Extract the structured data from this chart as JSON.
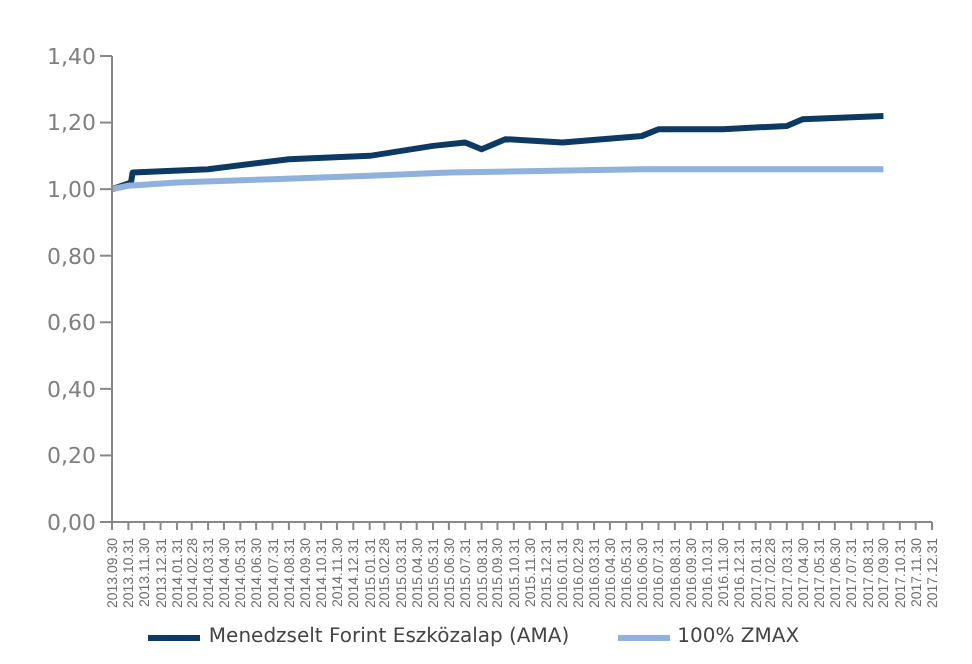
{
  "chart_data": {
    "type": "line",
    "xlim": [
      "2013-09-30",
      "2017-12-31"
    ],
    "xticks": [
      {
        "value": "2013-09-30",
        "label": "2013.09.30"
      },
      {
        "value": "2013-10-31",
        "label": "2013.10.31"
      },
      {
        "value": "2013-11-30",
        "label": "2013.11.30"
      },
      {
        "value": "2013-12-31",
        "label": "2013.12.31"
      },
      {
        "value": "2014-01-31",
        "label": "2014.01.31"
      },
      {
        "value": "2014-02-28",
        "label": "2014.02.28"
      },
      {
        "value": "2014-03-31",
        "label": "2014.03.31"
      },
      {
        "value": "2014-04-30",
        "label": "2014.04.30"
      },
      {
        "value": "2014-05-31",
        "label": "2014.05.31"
      },
      {
        "value": "2014-06-30",
        "label": "2014.06.30"
      },
      {
        "value": "2014-07-31",
        "label": "2014.07.31"
      },
      {
        "value": "2014-08-31",
        "label": "2014.08.31"
      },
      {
        "value": "2014-09-30",
        "label": "2014.09.30"
      },
      {
        "value": "2014-10-31",
        "label": "2014.10.31"
      },
      {
        "value": "2014-11-30",
        "label": "2014.11.30"
      },
      {
        "value": "2014-12-31",
        "label": "2014.12.31"
      },
      {
        "value": "2015-01-31",
        "label": "2015.01.31"
      },
      {
        "value": "2015-02-28",
        "label": "2015.02.28"
      },
      {
        "value": "2015-03-31",
        "label": "2015.03.31"
      },
      {
        "value": "2015-04-30",
        "label": "2015.04.30"
      },
      {
        "value": "2015-05-31",
        "label": "2015.05.31"
      },
      {
        "value": "2015-06-30",
        "label": "2015.06.30"
      },
      {
        "value": "2015-07-31",
        "label": "2015.07.31"
      },
      {
        "value": "2015-08-31",
        "label": "2015.08.31"
      },
      {
        "value": "2015-09-30",
        "label": "2015.09.30"
      },
      {
        "value": "2015-10-31",
        "label": "2015.10.31"
      },
      {
        "value": "2015-11-30",
        "label": "2015.11.30"
      },
      {
        "value": "2015-12-31",
        "label": "2015.12.31"
      },
      {
        "value": "2016-01-31",
        "label": "2016.01.31"
      },
      {
        "value": "2016-02-29",
        "label": "2016.02.29"
      },
      {
        "value": "2016-03-31",
        "label": "2016.03.31"
      },
      {
        "value": "2016-04-30",
        "label": "2016.04.30"
      },
      {
        "value": "2016-05-31",
        "label": "2016.05.31"
      },
      {
        "value": "2016-06-30",
        "label": "2016.06.30"
      },
      {
        "value": "2016-07-31",
        "label": "2016.07.31"
      },
      {
        "value": "2016-08-31",
        "label": "2016.08.31"
      },
      {
        "value": "2016-09-30",
        "label": "2016.09.30"
      },
      {
        "value": "2016-10-31",
        "label": "2016.10.31"
      },
      {
        "value": "2016-11-30",
        "label": "2016.11.30"
      },
      {
        "value": "2016-12-31",
        "label": "2016.12.31"
      },
      {
        "value": "2017-01-31",
        "label": "2017.01.31"
      },
      {
        "value": "2017-02-28",
        "label": "2017.02.28"
      },
      {
        "value": "2017-03-31",
        "label": "2017.03.31"
      },
      {
        "value": "2017-04-30",
        "label": "2017.04.30"
      },
      {
        "value": "2017-05-31",
        "label": "2017.05.31"
      },
      {
        "value": "2017-06-30",
        "label": "2017.06.30"
      },
      {
        "value": "2017-07-31",
        "label": "2017.07.31"
      },
      {
        "value": "2017-08-31",
        "label": "2017.08.31"
      },
      {
        "value": "2017-09-30",
        "label": "2017.09.30"
      },
      {
        "value": "2017-10-31",
        "label": "2017.10.31"
      },
      {
        "value": "2017-11-30",
        "label": "2017.11.30"
      },
      {
        "value": "2017-12-31",
        "label": "2017.12.31"
      }
    ],
    "ylim": [
      0,
      1.4
    ],
    "yticks": [
      {
        "value": 0,
        "label": "0,00"
      },
      {
        "value": 0.2,
        "label": "0,20"
      },
      {
        "value": 0.4,
        "label": "0,40"
      },
      {
        "value": 0.6,
        "label": "0,60"
      },
      {
        "value": 0.8,
        "label": "0,80"
      },
      {
        "value": 1,
        "label": "1,00"
      },
      {
        "value": 1.2,
        "label": "1,20"
      },
      {
        "value": 1.4,
        "label": "1,40"
      }
    ],
    "series": [
      {
        "name": "Menedzselt Forint Eszközalap (AMA)",
        "color": "#0d3a63",
        "x": [
          "2013-09-30",
          "2013-11-05",
          "2013-11-08",
          "2014-03-31",
          "2014-08-31",
          "2015-01-31",
          "2015-05-31",
          "2015-07-31",
          "2015-08-31",
          "2015-10-15",
          "2016-01-31",
          "2016-06-30",
          "2016-07-31",
          "2016-11-30",
          "2017-03-31",
          "2017-04-30",
          "2017-09-30"
        ],
        "values": [
          1.0,
          1.02,
          1.05,
          1.06,
          1.09,
          1.1,
          1.13,
          1.14,
          1.12,
          1.15,
          1.14,
          1.16,
          1.18,
          1.18,
          1.19,
          1.21,
          1.22
        ]
      },
      {
        "name": "100% ZMAX",
        "color": "#8fb1dc",
        "x": [
          "2013-09-30",
          "2013-10-31",
          "2014-01-31",
          "2014-07-31",
          "2015-01-31",
          "2015-06-30",
          "2016-06-30",
          "2017-09-30"
        ],
        "values": [
          1.0,
          1.01,
          1.02,
          1.03,
          1.04,
          1.05,
          1.06,
          1.06
        ]
      }
    ],
    "grid": false,
    "legend": "bottom",
    "marker": "none",
    "line_style": "solid"
  }
}
